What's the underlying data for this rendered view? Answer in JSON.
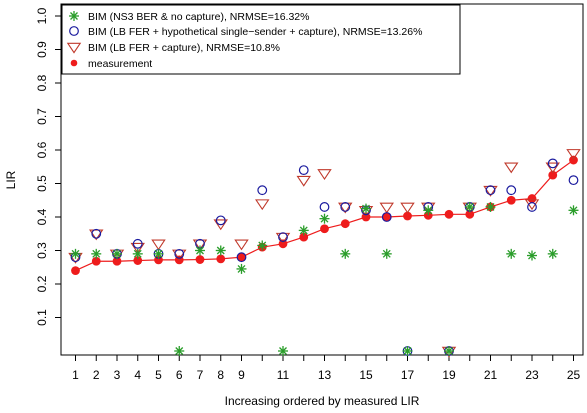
{
  "chart_data": {
    "type": "scatter",
    "xlabel": "Increasing ordered by measured LIR",
    "ylabel": "LIR",
    "xlim": [
      0.5,
      25.5
    ],
    "ylim": [
      0,
      1.0
    ],
    "x_ticks": [
      1,
      2,
      3,
      4,
      5,
      6,
      7,
      8,
      9,
      11,
      13,
      15,
      17,
      19,
      21,
      23,
      25
    ],
    "y_ticks": [
      0.1,
      0.2,
      0.3,
      0.4,
      0.5,
      0.6,
      0.7,
      0.8,
      0.9,
      1.0
    ],
    "y_tick_labels": [
      "0.1",
      "0.2",
      "0.3",
      "0.4",
      "0.5",
      "0.6",
      "0.7",
      "0.8",
      "0.9",
      "1.0"
    ],
    "grid": false,
    "legend_position": "top-left",
    "x": [
      1,
      2,
      3,
      4,
      5,
      6,
      7,
      8,
      9,
      10,
      11,
      12,
      13,
      14,
      15,
      16,
      17,
      18,
      19,
      20,
      21,
      22,
      23,
      24,
      25
    ],
    "series": [
      {
        "name": "BIM (NS3 BER & no capture), NRMSE=16.32%",
        "marker": "asterisk",
        "color": "#2a9d2a",
        "values": [
          0.29,
          0.29,
          0.29,
          0.29,
          0.29,
          0.0,
          0.3,
          0.3,
          0.245,
          0.315,
          0.0,
          0.36,
          0.395,
          0.29,
          0.425,
          0.29,
          0.0,
          0.42,
          0.0,
          0.43,
          0.43,
          0.29,
          0.285,
          0.29,
          0.42
        ]
      },
      {
        "name": "BIM (LB FER + hypothetical single−sender + capture), NRMSE=13.26%",
        "marker": "open-circle",
        "color": "#1a1a9e",
        "values": [
          0.28,
          0.35,
          0.29,
          0.32,
          0.29,
          0.29,
          0.32,
          0.39,
          0.28,
          0.48,
          0.34,
          0.54,
          0.43,
          0.43,
          0.42,
          0.4,
          0.0,
          0.43,
          0.0,
          0.43,
          0.48,
          0.48,
          0.43,
          0.56,
          0.51
        ]
      },
      {
        "name": "BIM (LB FER + capture), NRMSE=10.8%",
        "marker": "open-triangle-down",
        "color": "#c0392b",
        "values": [
          0.28,
          0.35,
          0.29,
          0.31,
          0.32,
          0.29,
          0.32,
          0.38,
          0.32,
          0.44,
          0.34,
          0.51,
          0.53,
          0.43,
          0.42,
          0.43,
          0.43,
          0.43,
          0.0,
          0.43,
          0.48,
          0.55,
          0.44,
          0.55,
          0.59
        ]
      },
      {
        "name": "measurement",
        "marker": "filled-circle-line",
        "color": "#ee1c1c",
        "values": [
          0.24,
          0.268,
          0.268,
          0.27,
          0.272,
          0.272,
          0.273,
          0.275,
          0.28,
          0.31,
          0.32,
          0.34,
          0.365,
          0.38,
          0.4,
          0.4,
          0.403,
          0.405,
          0.408,
          0.408,
          0.43,
          0.45,
          0.455,
          0.525,
          0.57
        ]
      }
    ]
  }
}
